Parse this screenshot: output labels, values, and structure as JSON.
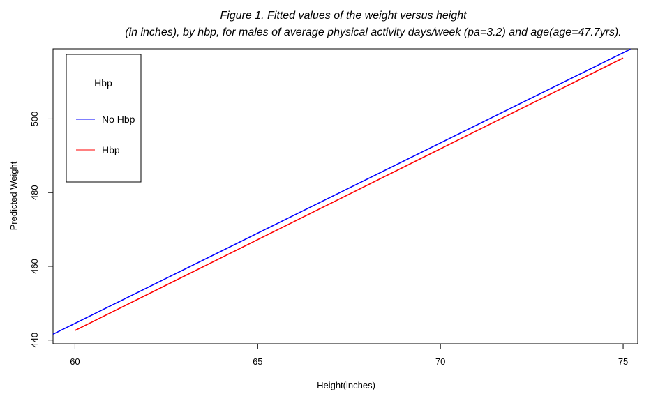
{
  "chart_data": {
    "type": "line",
    "title": "Figure 1. Fitted values of the weight versus height",
    "subtitle": "(in inches), by hbp, for males of average physical activity days/week (pa=3.2) and age(age=47.7yrs).",
    "xlabel": "Height(inches)",
    "ylabel": "Predicted Weight",
    "xlim": [
      59.4,
      75.4
    ],
    "ylim": [
      439.0,
      519.0
    ],
    "xticks": [
      "60",
      "65",
      "70",
      "75"
    ],
    "yticks": [
      "440",
      "460",
      "480",
      "500"
    ],
    "grid": false,
    "legend": {
      "title": "Hbp",
      "position": "top-left"
    },
    "series": [
      {
        "name": "No Hbp",
        "color": "#0000ff",
        "x": [
          59.4,
          75.2
        ],
        "y": [
          441.6,
          518.9
        ]
      },
      {
        "name": "Hbp",
        "color": "#ff0000",
        "x": [
          60.0,
          75.0
        ],
        "y": [
          442.6,
          516.5
        ]
      }
    ]
  }
}
